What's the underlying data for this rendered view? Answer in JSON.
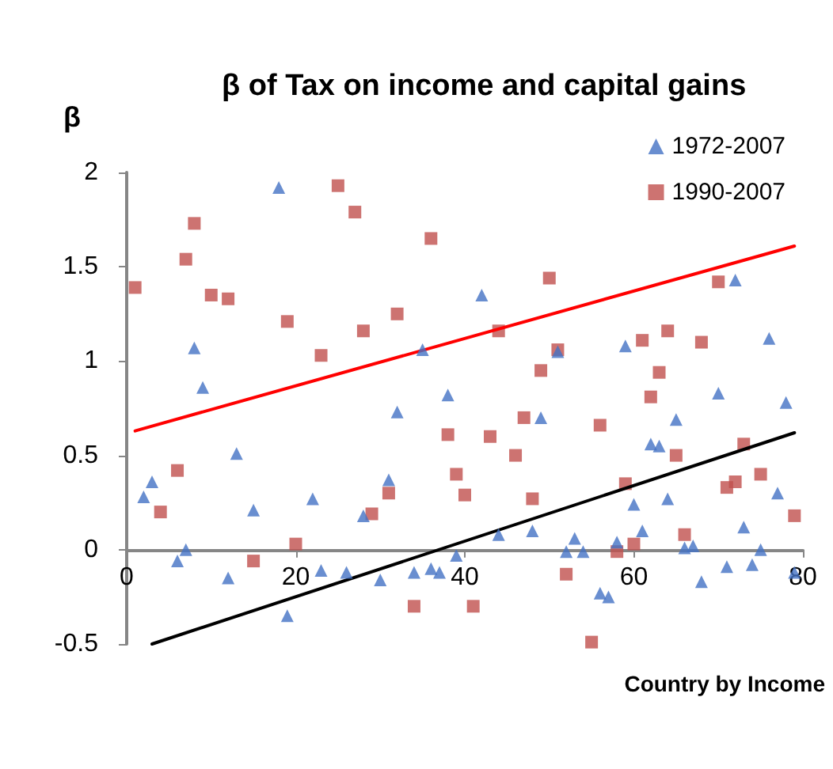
{
  "chart_data": {
    "type": "scatter",
    "title": "β of Tax on income and capital gains",
    "xlabel": "Country by Income",
    "ylabel": "β",
    "xlim": [
      0,
      80
    ],
    "xticks": [
      0,
      20,
      40,
      60,
      80
    ],
    "ylim": [
      -0.5,
      2
    ],
    "yticks": [
      -0.5,
      0,
      0.5,
      1,
      1.5,
      2
    ],
    "grid": false,
    "legend": "top right",
    "series": [
      {
        "name": "1972-2007",
        "color": "#4472c4",
        "marker": "triangle",
        "x": [
          2,
          3,
          6,
          7,
          8,
          9,
          12,
          13,
          15,
          18,
          19,
          22,
          23,
          26,
          28,
          30,
          31,
          32,
          34,
          35,
          36,
          37,
          38,
          39,
          42,
          44,
          48,
          49,
          51,
          52,
          53,
          54,
          56,
          57,
          58,
          59,
          60,
          61,
          62,
          63,
          64,
          65,
          66,
          67,
          68,
          70,
          71,
          72,
          73,
          74,
          75,
          76,
          77,
          78,
          79
        ],
        "values": [
          0.28,
          0.36,
          -0.06,
          0,
          1.07,
          0.86,
          -0.15,
          0.51,
          0.21,
          1.92,
          -0.35,
          0.27,
          -0.11,
          -0.12,
          0.18,
          -0.16,
          0.37,
          0.73,
          -0.12,
          1.06,
          -0.1,
          -0.12,
          0.82,
          -0.03,
          1.35,
          0.08,
          0.1,
          0.7,
          1.05,
          -0.01,
          0.06,
          -0.01,
          -0.23,
          -0.25,
          0.04,
          1.08,
          0.24,
          0.1,
          0.56,
          0.55,
          0.27,
          0.69,
          0.01,
          0.02,
          -0.17,
          0.83,
          -0.09,
          1.43,
          0.12,
          -0.08,
          0,
          1.12,
          0.3,
          0.78,
          -0.12
        ]
      },
      {
        "name": "1990-2007",
        "color": "#c0504d",
        "marker": "square",
        "x": [
          1,
          4,
          6,
          7,
          8,
          10,
          12,
          15,
          19,
          20,
          23,
          25,
          27,
          28,
          29,
          31,
          32,
          34,
          36,
          38,
          39,
          40,
          41,
          43,
          44,
          46,
          47,
          48,
          49,
          50,
          51,
          52,
          55,
          56,
          58,
          59,
          60,
          61,
          62,
          63,
          64,
          65,
          66,
          68,
          70,
          71,
          72,
          73,
          75,
          79
        ],
        "values": [
          1.39,
          0.2,
          0.42,
          1.54,
          1.73,
          1.35,
          1.33,
          -0.06,
          1.21,
          0.03,
          1.03,
          1.93,
          1.79,
          1.16,
          0.19,
          0.3,
          1.25,
          -0.3,
          1.65,
          0.61,
          0.4,
          0.29,
          -0.3,
          0.6,
          1.16,
          0.5,
          0.7,
          0.27,
          0.95,
          1.44,
          1.06,
          -0.13,
          -0.49,
          0.66,
          -0.01,
          0.35,
          0.03,
          1.11,
          0.81,
          0.94,
          1.16,
          0.5,
          0.08,
          1.1,
          1.42,
          0.33,
          0.36,
          0.56,
          0.4,
          0.18
        ]
      },
      {
        "type": "line",
        "color": "#ff0000",
        "marker": "none",
        "line_style": "solid",
        "x": [
          1,
          79
        ],
        "values": [
          0.63,
          1.61
        ]
      },
      {
        "type": "line",
        "color": "#000000",
        "marker": "none",
        "line_style": "solid",
        "x": [
          3,
          79
        ],
        "values": [
          -0.5,
          0.62
        ]
      }
    ]
  }
}
